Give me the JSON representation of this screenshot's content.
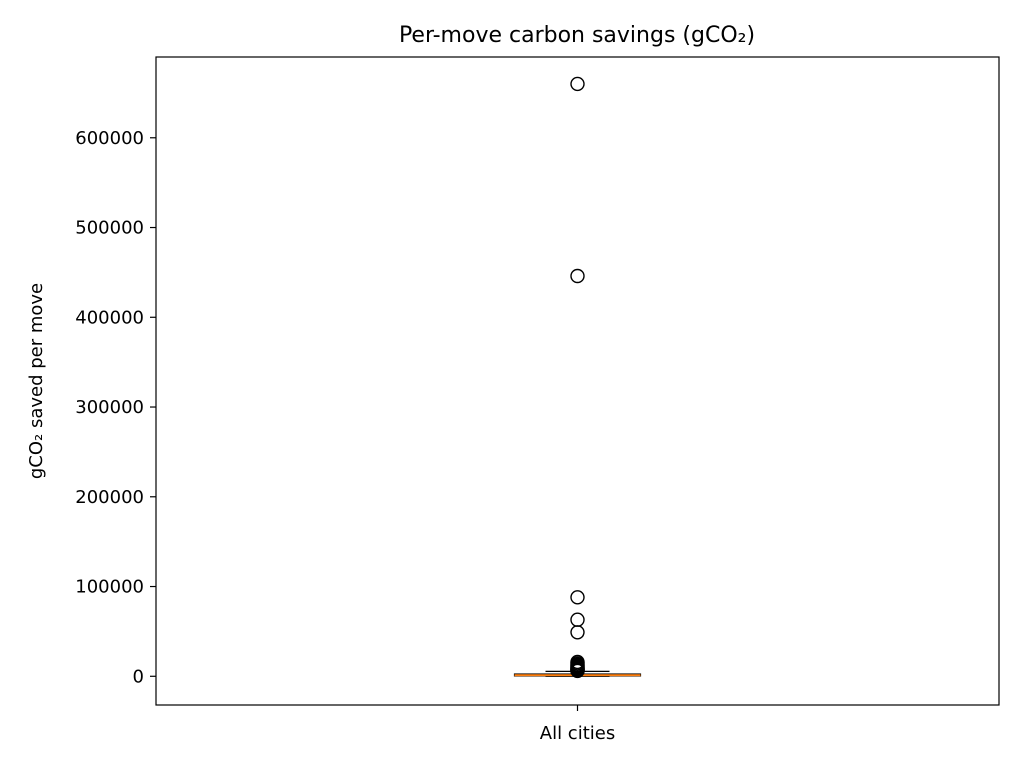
{
  "chart_data": {
    "type": "box",
    "title": "Per-move carbon savings (gCO₂)",
    "xlabel": "",
    "ylabel": "gCO₂ saved per move",
    "categories": [
      "All cities"
    ],
    "ylim": [
      -32000,
      690000
    ],
    "yticks": [
      0,
      100000,
      200000,
      300000,
      400000,
      500000,
      600000
    ],
    "ytick_labels": [
      "0",
      "100000",
      "200000",
      "300000",
      "400000",
      "500000",
      "600000"
    ],
    "grid": false,
    "box": {
      "whisker_low": 0,
      "q1": 400,
      "median": 1200,
      "q3": 2500,
      "whisker_high": 5500
    },
    "outliers": [
      660000,
      446000,
      88000,
      63000,
      49000,
      16000,
      14500,
      13000,
      12000,
      11000,
      10000,
      9000,
      8500,
      8000,
      7500,
      7000,
      6500,
      6000
    ],
    "colors": {
      "box": "#000000",
      "median": "#ff7f0e",
      "outlier_edge": "#000000"
    }
  }
}
